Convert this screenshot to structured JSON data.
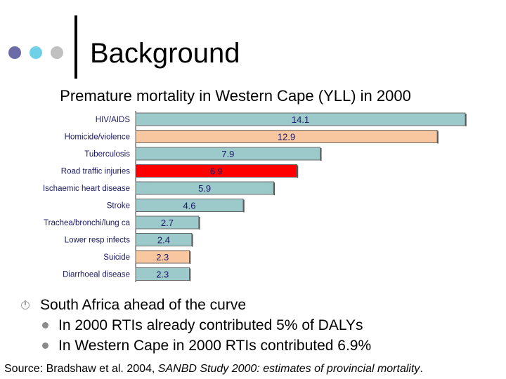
{
  "slide": {
    "title": "Background",
    "dot_colors": [
      "#6b6ba8",
      "#6fd0e8",
      "#c0c0c0"
    ]
  },
  "chart_data": {
    "type": "bar",
    "orientation": "horizontal",
    "title": "Premature mortality in Western Cape (YLL) in 2000",
    "categories": [
      "HIV/AIDS",
      "Homicide/violence",
      "Tuberculosis",
      "Road traffic injuries",
      "Ischaemic heart disease",
      "Stroke",
      "Trachea/bronchi/lung ca",
      "Lower resp infects",
      "Suicide",
      "Diarrhoeal disease"
    ],
    "values": [
      14.1,
      12.9,
      7.9,
      6.9,
      5.9,
      4.6,
      2.7,
      2.4,
      2.3,
      2.3
    ],
    "value_labels": [
      "14.1",
      "12.9",
      "7.9",
      "6.9",
      "5.9",
      "4.6",
      "2.7",
      "2.4",
      "2.3",
      "2.3"
    ],
    "bar_colors": [
      "#9ccacb",
      "#f9c79f",
      "#9ccacb",
      "#ff0000",
      "#9ccacb",
      "#9ccacb",
      "#9ccacb",
      "#9ccacb",
      "#f9c79f",
      "#9ccacb"
    ],
    "xlim": [
      0,
      14.1
    ],
    "grid": false,
    "legend": "none"
  },
  "bullets": {
    "main": "South Africa ahead of the curve",
    "sub": [
      "In 2000 RTIs already contributed 5% of DALYs",
      "In Western Cape in 2000 RTIs contributed 6.9%"
    ]
  },
  "source": {
    "prefix": "Source: Bradshaw et al. 2004, ",
    "italic": "SANBD Study 2000: estimates of provincial mortality",
    "suffix": "."
  }
}
